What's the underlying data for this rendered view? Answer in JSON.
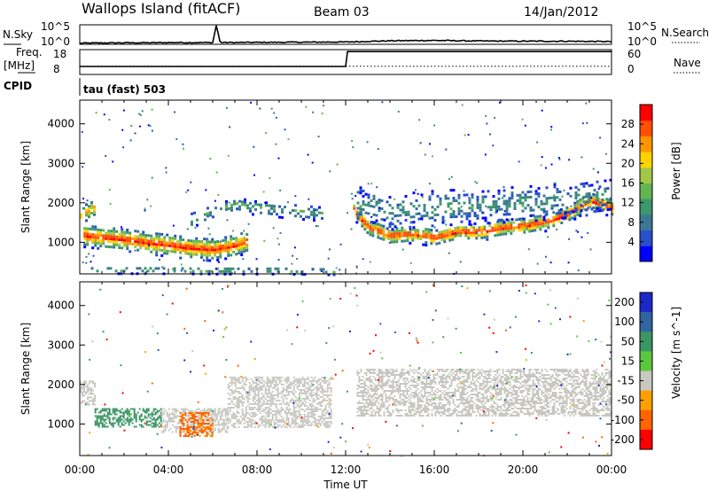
{
  "header": {
    "station": "Wallops Island (fitACF)",
    "beam": "Beam 03",
    "date": "14/Jan/2012"
  },
  "noise_panel": {
    "left_label": "N.Sky",
    "right_label": "N.Search",
    "left_ticks": [
      "10^5",
      "10^0"
    ],
    "right_ticks": [
      "10^5",
      "10^0"
    ]
  },
  "freq_panel": {
    "left_label_line1": "Freq.",
    "left_label_line2": "[MHz]",
    "left_ticks": [
      "18",
      "8"
    ],
    "right_ticks": [
      "60",
      "0"
    ],
    "right_label": "Nave"
  },
  "cpid": {
    "label": "CPID",
    "value": "tau (fast) 503"
  },
  "chart_data": [
    {
      "type": "line",
      "panel": "noise",
      "series": [
        {
          "name": "N.Sky",
          "style": "solid",
          "x": [
            "00:00",
            "01:00",
            "02:00",
            "03:00",
            "04:00",
            "05:00",
            "06:00",
            "06:10",
            "06:20",
            "08:00",
            "10:00",
            "12:00",
            "14:00",
            "15:00",
            "16:00",
            "18:00",
            "20:00",
            "22:00",
            "24:00"
          ],
          "y_log10": [
            0.3,
            0.35,
            0.4,
            0.4,
            0.45,
            0.45,
            0.45,
            5.0,
            0.45,
            0.5,
            0.55,
            0.6,
            0.9,
            0.95,
            1.0,
            0.85,
            0.8,
            0.8,
            0.7
          ]
        },
        {
          "name": "N.Search",
          "style": "dotted"
        }
      ],
      "ylim_log10": [
        0,
        5
      ]
    },
    {
      "type": "line",
      "panel": "frequency",
      "series": [
        {
          "name": "Freq.",
          "style": "solid",
          "x": [
            "00:00",
            "00:15",
            "12:00",
            "12:05",
            "24:00"
          ],
          "y": [
            10.5,
            10.5,
            10.5,
            16.5,
            16.5
          ]
        },
        {
          "name": "Nave",
          "style": "dotted",
          "x": [
            "00:00",
            "24:00"
          ],
          "y": [
            20,
            20
          ]
        }
      ],
      "ylim_left": [
        8,
        18
      ],
      "ylim_right": [
        0,
        60
      ]
    },
    {
      "type": "heatmap",
      "panel": "power",
      "x_ticks": [
        "00:00",
        "04:00",
        "08:00",
        "12:00",
        "16:00",
        "20:00",
        "00:00"
      ],
      "ylabel": "Slant Range [km]",
      "y_ticks": [
        1000,
        2000,
        3000,
        4000
      ],
      "ylim": [
        200,
        4600
      ],
      "colorbar": {
        "label": "Power [dB]",
        "ticks": [
          4,
          8,
          12,
          16,
          20,
          24,
          28
        ],
        "range": [
          0,
          32
        ],
        "colors": [
          "#0000ff",
          "#2850c8",
          "#3c7896",
          "#3c966e",
          "#64b450",
          "#a0c846",
          "#ffd200",
          "#ff9600",
          "#ff5000",
          "#ff0000"
        ]
      },
      "bands": [
        {
          "x": [
            "00:10",
            "01:00",
            "02:00",
            "03:00",
            "04:00",
            "05:00",
            "06:00",
            "07:00",
            "07:30"
          ],
          "center": [
            1200,
            1150,
            1100,
            1020,
            960,
            880,
            850,
            950,
            1050
          ],
          "width": 320,
          "strength": 0.95
        },
        {
          "x": [
            "00:00",
            "00:40"
          ],
          "center": [
            1750,
            1900
          ],
          "width": 250,
          "strength": 0.8
        },
        {
          "x": [
            "05:00",
            "06:00",
            "07:00",
            "08:00",
            "09:00",
            "10:00",
            "11:00"
          ],
          "center": [
            1600,
            1800,
            2000,
            1900,
            1850,
            1800,
            1750
          ],
          "width": 220,
          "strength": 0.4
        },
        {
          "x": [
            "12:20",
            "13:00",
            "14:00",
            "15:00",
            "16:00",
            "17:00",
            "18:00",
            "19:00",
            "20:00",
            "21:00",
            "22:00",
            "23:00",
            "24:00"
          ],
          "center": [
            1850,
            1400,
            1200,
            1250,
            1150,
            1300,
            1300,
            1400,
            1450,
            1550,
            1750,
            2100,
            1900
          ],
          "width": 240,
          "strength": 0.95
        },
        {
          "x": [
            "12:30",
            "14:00",
            "16:00",
            "18:00",
            "20:00",
            "22:00",
            "24:00"
          ],
          "center": [
            2000,
            1800,
            1900,
            1950,
            2000,
            2100,
            2250
          ],
          "width": 500,
          "strength": 0.35
        },
        {
          "x": [
            "00:30",
            "03:00",
            "06:00",
            "09:00",
            "11:30"
          ],
          "center": [
            330,
            330,
            320,
            320,
            300
          ],
          "width": 110,
          "strength": 0.45
        }
      ]
    },
    {
      "type": "heatmap",
      "panel": "velocity",
      "x_ticks": [
        "00:00",
        "04:00",
        "08:00",
        "12:00",
        "16:00",
        "20:00",
        "00:00"
      ],
      "xlabel": "Time UT",
      "ylabel": "Slant Range [km]",
      "y_ticks": [
        1000,
        2000,
        3000,
        4000
      ],
      "ylim": [
        200,
        4600
      ],
      "colorbar": {
        "label": "Velocity [m s^-1]",
        "ticks": [
          200,
          100,
          50,
          15,
          -15,
          -50,
          -100,
          -200
        ],
        "colors": [
          "#1e28c8",
          "#3264a0",
          "#3c9664",
          "#5ac83c",
          "#c8c8c0",
          "#ffa000",
          "#ff6400",
          "#ff0000"
        ]
      },
      "regions": [
        {
          "x": [
            "00:40",
            "03:40"
          ],
          "y": [
            950,
            1400
          ],
          "velocity": 60
        },
        {
          "x": [
            "03:40",
            "06:40"
          ],
          "y": [
            800,
            1400
          ],
          "velocity": 0
        },
        {
          "x": [
            "04:30",
            "06:00"
          ],
          "y": [
            700,
            1300
          ],
          "velocity": -40
        },
        {
          "x": [
            "06:40",
            "11:20"
          ],
          "y": [
            900,
            2200
          ],
          "velocity": 0
        },
        {
          "x": [
            "12:30",
            "24:00"
          ],
          "y": [
            1200,
            2400
          ],
          "velocity": 0
        },
        {
          "x": [
            "00:00",
            "00:40"
          ],
          "y": [
            1500,
            2100
          ],
          "velocity": 0
        }
      ]
    }
  ]
}
